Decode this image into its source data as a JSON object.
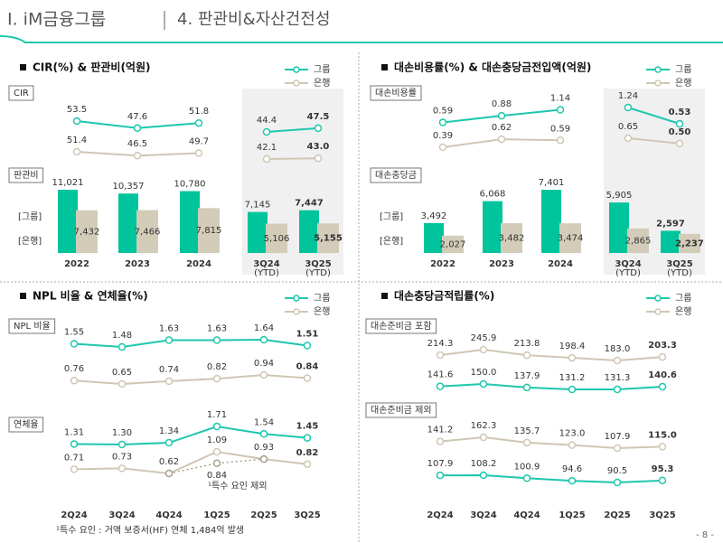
{
  "header": {
    "section": "Ⅰ. iM금융그룹",
    "title": "4. 판관비&자산건전성"
  },
  "page": "- 8 -",
  "chart_data": [
    {
      "type": "line-bar",
      "title": "CIR(%) & 판관비(억원)",
      "line_label": "CIR",
      "bar_label": "판관비",
      "categories": [
        "2022",
        "2023",
        "2024",
        "3Q24",
        "3Q25"
      ],
      "category_notes": [
        null,
        null,
        null,
        "(YTD)",
        "(YTD)"
      ],
      "highlight_from": 3,
      "series": [
        {
          "name": "그룹",
          "tag": "[그룹]",
          "color": "#1dc7ae",
          "bar_color": "#00c49c",
          "values": [
            53.5,
            47.6,
            51.8,
            44.4,
            47.5
          ],
          "value_labels": [
            "53.5",
            "47.6",
            "51.8",
            "44.4",
            "47.5"
          ],
          "bar_values": [
            11021,
            10357,
            10780,
            7145,
            7447
          ],
          "bar_value_labels": [
            "11,021",
            "10,357",
            "10,780",
            "7,145",
            "7,447"
          ]
        },
        {
          "name": "은행",
          "tag": "[은행]",
          "color": "#cfc7b3",
          "bar_color": "#d3ccb9",
          "values": [
            51.4,
            46.5,
            49.7,
            42.1,
            43.0
          ],
          "value_labels": [
            "51.4",
            "46.5",
            "49.7",
            "42.1",
            "43.0"
          ],
          "bar_values": [
            7432,
            7466,
            7815,
            5106,
            5155
          ],
          "bar_value_labels": [
            "7,432",
            "7,466",
            "7,815",
            "5,106",
            "5,155"
          ]
        }
      ]
    },
    {
      "type": "line-bar",
      "title": "대손비용률(%) & 대손충당금전입액(억원)",
      "line_label": "대손비용률",
      "bar_label": "대손충당금",
      "categories": [
        "2022",
        "2023",
        "2024",
        "3Q24",
        "3Q25"
      ],
      "category_notes": [
        null,
        null,
        null,
        "(YTD)",
        "(YTD)"
      ],
      "highlight_from": 3,
      "series": [
        {
          "name": "그룹",
          "tag": "[그룹]",
          "color": "#1dc7ae",
          "bar_color": "#00c49c",
          "values": [
            0.59,
            0.88,
            1.14,
            1.24,
            0.53
          ],
          "value_labels": [
            "0.59",
            "0.88",
            "1.14",
            "1.24",
            "0.53"
          ],
          "bar_values": [
            3492,
            6068,
            7401,
            5905,
            2597
          ],
          "bar_value_labels": [
            "3,492",
            "6,068",
            "7,401",
            "5,905",
            "2,597"
          ]
        },
        {
          "name": "은행",
          "tag": "[은행]",
          "color": "#cfc7b3",
          "bar_color": "#d3ccb9",
          "values": [
            0.39,
            0.62,
            0.59,
            0.65,
            0.5
          ],
          "value_labels": [
            "0.39",
            "0.62",
            "0.59",
            "0.65",
            "0.50"
          ],
          "bar_values": [
            2027,
            3482,
            3474,
            2865,
            2237
          ],
          "bar_value_labels": [
            "2,027",
            "3,482",
            "3,474",
            "2,865",
            "2,237"
          ]
        }
      ]
    },
    {
      "type": "line",
      "title": "NPL 비율 & 연체율(%)",
      "categories": [
        "2Q24",
        "3Q24",
        "4Q24",
        "1Q25",
        "2Q25",
        "3Q25"
      ],
      "series": [
        {
          "name": "그룹",
          "color": "#1dc7ae"
        },
        {
          "name": "은행",
          "color": "#cfc7b3"
        }
      ],
      "panels": [
        {
          "label": "NPL 비율",
          "values": [
            [
              1.55,
              1.48,
              1.63,
              1.63,
              1.64,
              1.51
            ],
            [
              0.76,
              0.65,
              0.74,
              0.82,
              0.94,
              0.84
            ]
          ],
          "value_labels": [
            [
              "1.55",
              "1.48",
              "1.63",
              "1.63",
              "1.64",
              "1.51"
            ],
            [
              "0.76",
              "0.65",
              "0.74",
              "0.82",
              "0.94",
              "0.84"
            ]
          ]
        },
        {
          "label": "연체율",
          "values": [
            [
              1.31,
              1.3,
              1.34,
              1.71,
              1.54,
              1.45
            ],
            [
              0.71,
              0.73,
              0.62,
              1.09,
              0.93,
              0.82
            ]
          ],
          "value_labels": [
            [
              "1.31",
              "1.30",
              "1.34",
              "1.71",
              "1.54",
              "1.45"
            ],
            [
              "0.71",
              "0.73",
              "0.62",
              "1.09",
              "0.93",
              "0.82"
            ]
          ],
          "adjusted": {
            "label": "¹특수 요인 제외",
            "color": "#a9a18c",
            "dashed": true,
            "values": [
              null,
              null,
              0.62,
              0.84,
              0.93,
              null
            ],
            "value_labels": [
              null,
              null,
              null,
              "0.84",
              null,
              null
            ]
          }
        }
      ],
      "note": "¹특수 요인 : 거액 보증서(HF) 연체 1,484억 발생"
    },
    {
      "type": "line",
      "title": "대손충당금적립률(%)",
      "categories": [
        "2Q24",
        "3Q24",
        "4Q24",
        "1Q25",
        "2Q25",
        "3Q25"
      ],
      "series": [
        {
          "name": "그룹",
          "color": "#1dc7ae"
        },
        {
          "name": "은행",
          "color": "#cfc7b3"
        }
      ],
      "panels": [
        {
          "label": "대손준비금 포함",
          "values": [
            [
              141.6,
              150.0,
              137.9,
              131.2,
              131.3,
              140.6
            ],
            [
              214.3,
              245.9,
              213.8,
              198.4,
              183.0,
              203.3
            ]
          ],
          "value_labels": [
            [
              "141.6",
              "150.0",
              "137.9",
              "131.2",
              "131.3",
              "140.6"
            ],
            [
              "214.3",
              "245.9",
              "213.8",
              "198.4",
              "183.0",
              "203.3"
            ]
          ]
        },
        {
          "label": "대손준비금 제외",
          "values": [
            [
              107.9,
              108.2,
              100.9,
              94.6,
              90.5,
              95.3
            ],
            [
              141.2,
              162.3,
              135.7,
              123.0,
              107.9,
              115.0
            ]
          ],
          "value_labels": [
            [
              "107.9",
              "108.2",
              "100.9",
              "94.6",
              "90.5",
              "95.3"
            ],
            [
              "141.2",
              "162.3",
              "135.7",
              "123.0",
              "107.9",
              "115.0"
            ]
          ]
        }
      ]
    }
  ]
}
